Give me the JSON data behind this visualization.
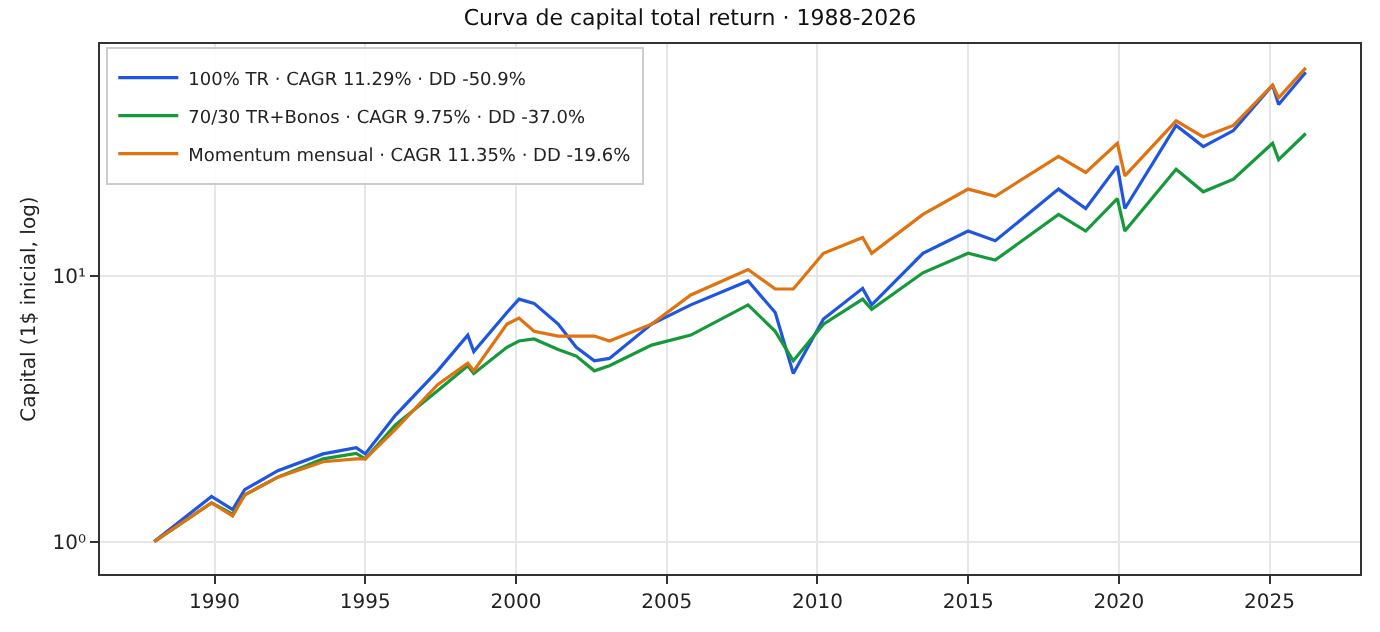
{
  "chart_data": {
    "type": "line",
    "title": "Curva de capital total return · 1988-2026",
    "ylabel": "Capital (1$ inicial, log)",
    "x": [
      1988.0,
      1989.9,
      1990.6,
      1991.0,
      1992.1,
      1993.6,
      1994.7,
      1995.0,
      1996.0,
      1997.4,
      1998.4,
      1998.6,
      1999.7,
      2000.1,
      2000.6,
      2001.4,
      2002.0,
      2002.6,
      2003.1,
      2004.5,
      2005.8,
      2007.7,
      2008.6,
      2009.2,
      2010.2,
      2011.5,
      2011.8,
      2013.5,
      2015.0,
      2015.9,
      2018.0,
      2018.9,
      2019.95,
      2020.2,
      2021.9,
      2022.8,
      2023.8,
      2025.1,
      2025.3,
      2026.2
    ],
    "series": [
      {
        "name": "100% TR · CAGR 11.29% · DD -50.9%",
        "color": "#1f55e0",
        "values": [
          1.0,
          1.48,
          1.32,
          1.57,
          1.85,
          2.14,
          2.26,
          2.14,
          2.99,
          4.4,
          6.0,
          5.2,
          7.3,
          8.2,
          7.9,
          6.6,
          5.4,
          4.8,
          4.9,
          6.6,
          7.8,
          9.6,
          7.3,
          4.3,
          6.9,
          9.0,
          7.8,
          12.2,
          14.8,
          13.6,
          21.3,
          18.0,
          26.0,
          18.0,
          37.0,
          30.8,
          35.4,
          52.5,
          44.4,
          58.7
        ]
      },
      {
        "name": "70/30 TR+Bonos · CAGR 9.75% · DD -37.0%",
        "color": "#15993a",
        "values": [
          1.0,
          1.4,
          1.27,
          1.5,
          1.75,
          2.05,
          2.15,
          2.05,
          2.75,
          3.7,
          4.6,
          4.3,
          5.4,
          5.7,
          5.8,
          5.3,
          5.0,
          4.4,
          4.6,
          5.5,
          6.0,
          7.8,
          6.2,
          4.8,
          6.6,
          8.2,
          7.5,
          10.3,
          12.2,
          11.5,
          17.1,
          14.8,
          19.6,
          14.8,
          25.3,
          20.8,
          23.2,
          31.7,
          27.5,
          34.5
        ]
      },
      {
        "name": "Momentum mensual · CAGR 11.35% · DD -19.6%",
        "color": "#e0720f",
        "values": [
          1.0,
          1.4,
          1.25,
          1.5,
          1.75,
          2.0,
          2.05,
          2.05,
          2.65,
          3.9,
          4.7,
          4.4,
          6.6,
          6.95,
          6.2,
          5.95,
          5.95,
          5.95,
          5.7,
          6.6,
          8.5,
          10.6,
          8.95,
          8.95,
          12.2,
          14.0,
          12.2,
          17.1,
          21.3,
          20.0,
          28.3,
          24.6,
          31.7,
          23.9,
          38.5,
          33.5,
          37.0,
          52.5,
          47.0,
          61.0
        ]
      }
    ],
    "xlim": [
      1986.2,
      2028.0
    ],
    "xticks": [
      1990,
      1995,
      2000,
      2005,
      2010,
      2015,
      2020,
      2025
    ],
    "ylim": [
      0.755,
      75
    ],
    "yticks": [
      {
        "value": 1,
        "label": "10⁰"
      },
      {
        "value": 10,
        "label": "10¹"
      }
    ],
    "log": "y",
    "grid": true,
    "legend": "top left",
    "marker": "none",
    "line_style": "solid"
  }
}
